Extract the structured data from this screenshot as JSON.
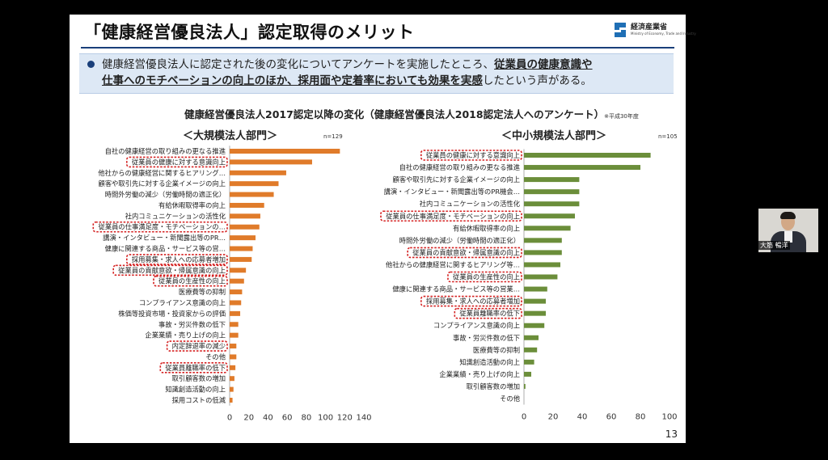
{
  "slide": {
    "title": "「健康経営優良法人」認定取得のメリット",
    "logo_text": "経済産業省",
    "logo_sub": "Ministry of Economy, Trade and Industry",
    "callout_line1_plain": "健康経営優良法人に認定された後の変化についてアンケートを実施したところ、",
    "callout_line1_bold": "従業員の健康意識や",
    "callout_line2_bold": "仕事へのモチベーションの向上のほか、採用面や定着率においても効果を実感",
    "callout_line2_plain": "したという声がある。",
    "chart_title": "健康経営優良法人2017認定以降の変化（健康経営優良法人2018認定法人へのアンケート）",
    "chart_note": "※平成30年度",
    "page_number": "13"
  },
  "presenter": {
    "name": "大筋 暢洋"
  },
  "chart_data": [
    {
      "type": "bar",
      "orientation": "horizontal",
      "title": "＜大規模法人部門＞",
      "n_label": "n=129",
      "color": "#e07b2a",
      "xlim": [
        0,
        140
      ],
      "xticks": [
        0,
        20,
        40,
        60,
        80,
        100,
        120,
        140
      ],
      "categories": [
        "自社の健康経営の取り組みの更なる推進",
        "従業員の健康に対する意識向上",
        "他社からの健康経営に関するヒアリング…",
        "顧客や取引先に対する企業イメージの向上",
        "時間外労働の減少（労働時間の適正化）",
        "有給休暇取得率の向上",
        "社内コミュニケーションの活性化",
        "従業員の仕事満足度・モチベーションの…",
        "講演・インタビュー・新聞露出等のPR…",
        "健康に関連する商品・サービス等の営…",
        "採用募集・求人への応募者増加",
        "従業員の貢献意欲・帰属意識の向上",
        "従業員の生産性の向上",
        "医療費等の抑制",
        "コンプライアンス意識の向上",
        "株価等投資市場・投資家からの評価",
        "事故・労災件数の低下",
        "企業業績・売り上げの向上",
        "内定辞退率の減少",
        "その他",
        "従業員離職率の低下",
        "取引顧客数の増加",
        "知識創造活動の向上",
        "採用コストの低減"
      ],
      "values": [
        115,
        86,
        59,
        51,
        46,
        36,
        32,
        31,
        27,
        24,
        23,
        17,
        15,
        13,
        12,
        11,
        9,
        9,
        7,
        7,
        6,
        5,
        4,
        3
      ],
      "highlighted": [
        1,
        7,
        10,
        11,
        12,
        18,
        20
      ]
    },
    {
      "type": "bar",
      "orientation": "horizontal",
      "title": "＜中小規模法人部門＞",
      "n_label": "n=105",
      "color": "#6b8e3a",
      "xlim": [
        0,
        100
      ],
      "xticks": [
        0,
        20,
        40,
        60,
        80,
        100
      ],
      "categories": [
        "従業員の健康に対する意識向上",
        "自社の健康経営の取り組みの更なる推進",
        "顧客や取引先に対する企業イメージの向上",
        "講演・インタビュー・新聞露出等のPR機会…",
        "社内コミュニケーションの活性化",
        "従業員の仕事満足度・モチベーションの向上",
        "有給休暇取得率の向上",
        "時間外労働の減少（労働時間の適正化）",
        "従業員の貢献意欲・帰属意識の向上",
        "他社からの健康経営に関するヒアリング等…",
        "従業員の生産性の向上",
        "健康に関連する商品・サービス等の営業…",
        "採用募集・求人への応募者増加",
        "従業員離職率の低下",
        "コンプライアンス意識の向上",
        "事故・労災件数の低下",
        "医療費等の抑制",
        "知識創造活動の向上",
        "企業業績・売り上げの向上",
        "取引顧客数の増加",
        "その他"
      ],
      "values": [
        87,
        80,
        38,
        38,
        38,
        35,
        32,
        26,
        26,
        25,
        23,
        16,
        15,
        15,
        14,
        10,
        9,
        7,
        5,
        1,
        0
      ],
      "highlighted": [
        0,
        5,
        8,
        10,
        12,
        13
      ]
    }
  ]
}
